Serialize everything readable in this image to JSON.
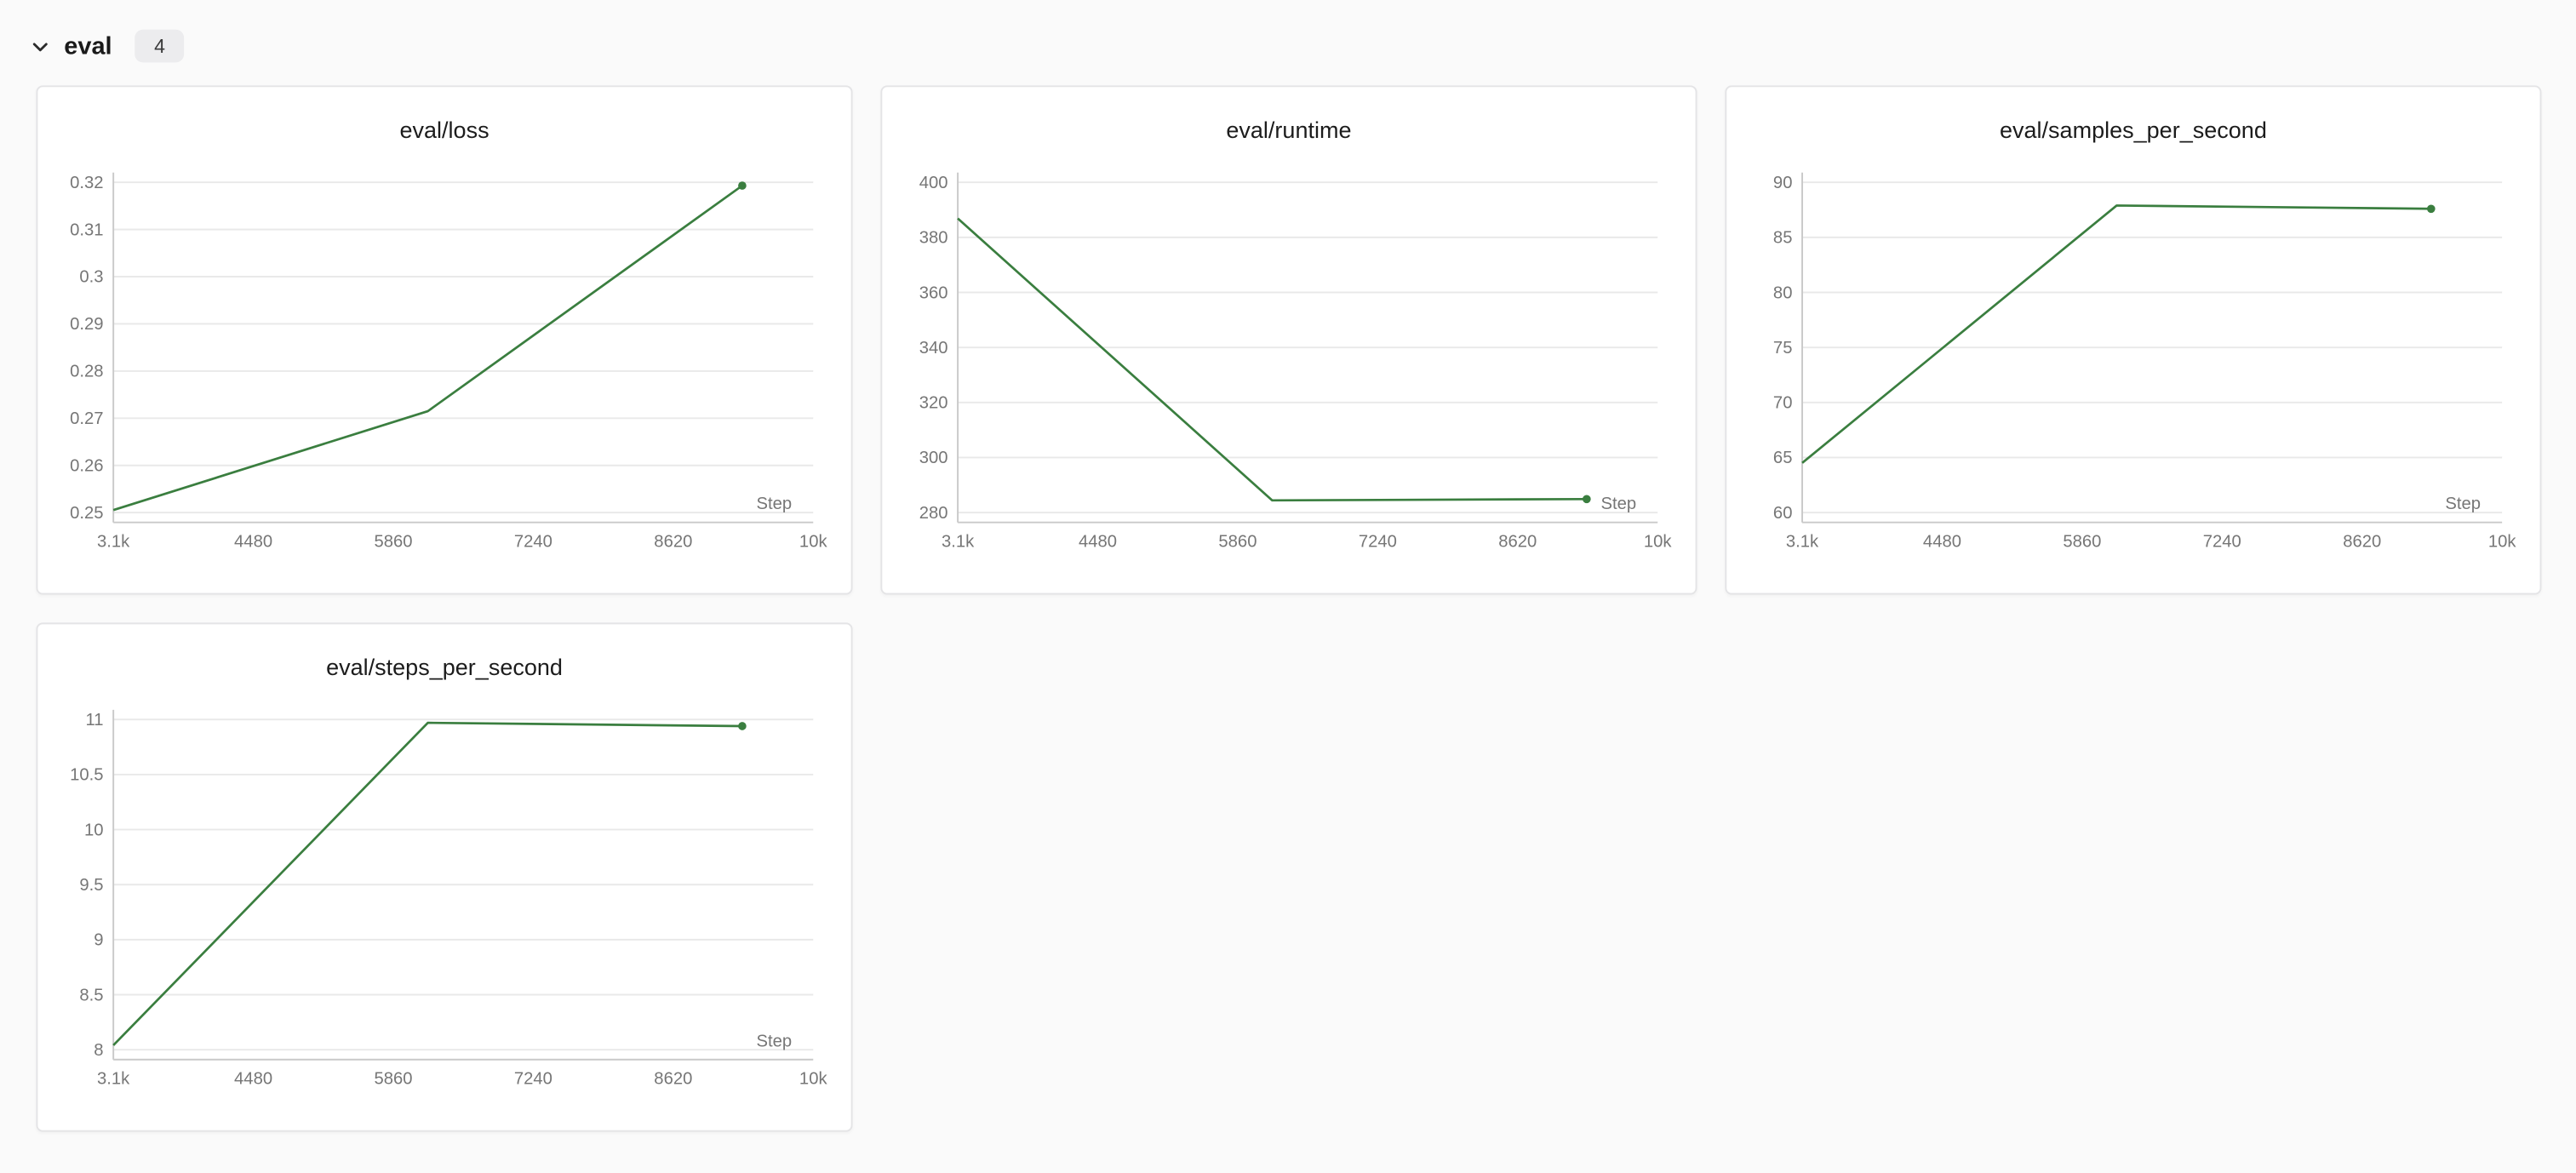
{
  "header": {
    "section_label": "eval",
    "panel_count": "4",
    "chevron_icon": "chevron-down"
  },
  "colors": {
    "page_bg": "#fafafa",
    "card_bg": "#ffffff",
    "card_border": "#e4e4e6",
    "line": "#3a7e3f",
    "grid": "#e9e9e9",
    "axis": "#c9c9c9",
    "tick_text": "#767676",
    "title_text": "#1c1c1c",
    "badge_bg": "#ececee"
  },
  "chart_data": [
    {
      "type": "line",
      "title": "eval/loss",
      "xlabel": "Step",
      "legend_position": "none",
      "grid": true,
      "x": [
        3100,
        6200,
        9300
      ],
      "values": [
        0.2505,
        0.2715,
        0.3193
      ],
      "xlim": [
        3100,
        10000
      ],
      "xticks": {
        "values": [
          3100,
          4480,
          5860,
          7240,
          8620,
          10000
        ],
        "labels": [
          "3.1k",
          "4480",
          "5860",
          "7240",
          "8620",
          "10k"
        ]
      },
      "yticks": {
        "values": [
          0.25,
          0.26,
          0.27,
          0.28,
          0.29,
          0.3,
          0.31,
          0.32
        ],
        "labels": [
          "0.25",
          "0.26",
          "0.27",
          "0.28",
          "0.29",
          "0.3",
          "0.31",
          "0.32"
        ]
      }
    },
    {
      "type": "line",
      "title": "eval/runtime",
      "xlabel": "Step",
      "legend_position": "none",
      "grid": true,
      "x": [
        3100,
        6200,
        9300
      ],
      "values": [
        386.9,
        284.4,
        284.9
      ],
      "xlim": [
        3100,
        10000
      ],
      "xticks": {
        "values": [
          3100,
          4480,
          5860,
          7240,
          8620,
          10000
        ],
        "labels": [
          "3.1k",
          "4480",
          "5860",
          "7240",
          "8620",
          "10k"
        ]
      },
      "yticks": {
        "values": [
          280,
          300,
          320,
          340,
          360,
          380,
          400
        ],
        "labels": [
          "280",
          "300",
          "320",
          "340",
          "360",
          "380",
          "400"
        ]
      }
    },
    {
      "type": "line",
      "title": "eval/samples_per_second",
      "xlabel": "Step",
      "legend_position": "none",
      "grid": true,
      "x": [
        3100,
        6200,
        9300
      ],
      "values": [
        64.5,
        87.9,
        87.6
      ],
      "xlim": [
        3100,
        10000
      ],
      "xticks": {
        "values": [
          3100,
          4480,
          5860,
          7240,
          8620,
          10000
        ],
        "labels": [
          "3.1k",
          "4480",
          "5860",
          "7240",
          "8620",
          "10k"
        ]
      },
      "yticks": {
        "values": [
          60,
          65,
          70,
          75,
          80,
          85,
          90
        ],
        "labels": [
          "60",
          "65",
          "70",
          "75",
          "80",
          "85",
          "90"
        ]
      }
    },
    {
      "type": "line",
      "title": "eval/steps_per_second",
      "xlabel": "Step",
      "legend_position": "none",
      "grid": true,
      "x": [
        3100,
        6200,
        9300
      ],
      "values": [
        8.04,
        10.97,
        10.94
      ],
      "xlim": [
        3100,
        10000
      ],
      "xticks": {
        "values": [
          3100,
          4480,
          5860,
          7240,
          8620,
          10000
        ],
        "labels": [
          "3.1k",
          "4480",
          "5860",
          "7240",
          "8620",
          "10k"
        ]
      },
      "yticks": {
        "values": [
          8,
          8.5,
          9,
          9.5,
          10,
          10.5,
          11
        ],
        "labels": [
          "8",
          "8.5",
          "9",
          "9.5",
          "10",
          "10.5",
          "11"
        ]
      }
    }
  ]
}
